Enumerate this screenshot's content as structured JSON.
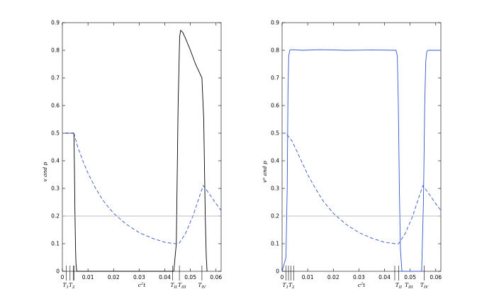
{
  "chart_data": [
    {
      "type": "line",
      "title": "",
      "xlabel": "c²t",
      "ylabel": "v and p",
      "xlim": [
        0,
        0.062
      ],
      "ylim": [
        0,
        0.9
      ],
      "xticks": [
        "0",
        "0.01",
        "0.02",
        "0.03",
        "0.04",
        "0.05",
        "0.06"
      ],
      "yticks": [
        "0",
        "0.1",
        "0.2",
        "0.3",
        "0.4",
        "0.5",
        "0.6",
        "0.7",
        "0.8",
        "0.9"
      ],
      "event_ticks": [
        {
          "label": "T₁T₂",
          "t": 0.0025
        },
        {
          "label": "T_II",
          "t": 0.0435
        },
        {
          "label": "T_III",
          "t": 0.0467
        },
        {
          "label": "T_IV",
          "t": 0.0545
        }
      ],
      "event_tick_values": [
        0.0015,
        0.003,
        0.0043,
        0.0045,
        0.043,
        0.0457,
        0.0545
      ],
      "series": [
        {
          "style": "solid",
          "color": "#000000",
          "x": [
            0,
            0.0045,
            0.0047,
            0.0049,
            0.0051,
            0.0053,
            0.0056,
            0.0435,
            0.0445,
            0.0452,
            0.0458,
            0.0462,
            0.047,
            0.048,
            0.05,
            0.052,
            0.0535,
            0.0545,
            0.0552,
            0.0558,
            0.0562,
            0.0565
          ],
          "y": [
            0.5,
            0.5,
            0.38,
            0.22,
            0.1,
            0.03,
            0,
            0,
            0.1,
            0.6,
            0.85,
            0.872,
            0.865,
            0.845,
            0.8,
            0.75,
            0.72,
            0.7,
            0.55,
            0.2,
            0.05,
            0
          ]
        },
        {
          "style": "dashed",
          "color": "#3355cc",
          "x": [
            0,
            0.0045,
            0.006,
            0.008,
            0.01,
            0.013,
            0.016,
            0.02,
            0.025,
            0.03,
            0.035,
            0.04,
            0.044,
            0.0455,
            0.048,
            0.051,
            0.0535,
            0.055,
            0.057,
            0.06,
            0.062
          ],
          "y": [
            0.5,
            0.5,
            0.45,
            0.4,
            0.355,
            0.3,
            0.255,
            0.21,
            0.17,
            0.14,
            0.12,
            0.105,
            0.1,
            0.1,
            0.135,
            0.2,
            0.27,
            0.31,
            0.285,
            0.245,
            0.22
          ]
        },
        {
          "style": "solid",
          "color": "#aaaaaa",
          "name": "",
          "x": [
            0,
            0.062
          ],
          "y": [
            0.2,
            0.2
          ]
        }
      ]
    },
    {
      "type": "line",
      "title": "",
      "xlabel": "c²t",
      "ylabel": "vᵉ and p",
      "xlim": [
        0,
        0.062
      ],
      "ylim": [
        0,
        0.9
      ],
      "xticks": [
        "0",
        "0.01",
        "0.02",
        "0.03",
        "0.04",
        "0.05",
        "0.06"
      ],
      "yticks": [
        "0",
        "0.1",
        "0.2",
        "0.3",
        "0.4",
        "0.5",
        "0.6",
        "0.7",
        "0.8",
        "0.9"
      ],
      "event_ticks": [
        {
          "label": "T₁T₂",
          "t": 0.0025
        },
        {
          "label": "T_II",
          "t": 0.0455
        },
        {
          "label": "T_III",
          "t": 0.0495
        },
        {
          "label": "T_IV",
          "t": 0.0555
        }
      ],
      "event_tick_values": [
        0.0015,
        0.0025,
        0.0035,
        0.0045,
        0.044,
        0.0455,
        0.0555
      ],
      "series": [
        {
          "style": "solid",
          "color": "#3355cc",
          "x": [
            0,
            0.0015,
            0.002,
            0.0023,
            0.0026,
            0.003,
            0.0035,
            0.008,
            0.015,
            0.025,
            0.035,
            0.0445,
            0.045,
            0.0454,
            0.0458,
            0.0462,
            0.0468,
            0.0545,
            0.0552,
            0.0557,
            0.0561,
            0.0565,
            0.057,
            0.062
          ],
          "y": [
            0,
            0.05,
            0.3,
            0.65,
            0.78,
            0.8,
            0.802,
            0.8,
            0.802,
            0.8,
            0.801,
            0.8,
            0.78,
            0.6,
            0.3,
            0.08,
            0,
            0,
            0.25,
            0.6,
            0.76,
            0.795,
            0.8,
            0.8
          ]
        },
        {
          "style": "dashed",
          "color": "#3355cc",
          "x": [
            0,
            0.0015,
            0.004,
            0.006,
            0.008,
            0.01,
            0.013,
            0.016,
            0.02,
            0.025,
            0.03,
            0.035,
            0.04,
            0.044,
            0.0455,
            0.048,
            0.051,
            0.0535,
            0.055,
            0.057,
            0.06,
            0.062
          ],
          "y": [
            0.5,
            0.5,
            0.47,
            0.43,
            0.39,
            0.35,
            0.3,
            0.255,
            0.21,
            0.17,
            0.14,
            0.12,
            0.105,
            0.1,
            0.1,
            0.135,
            0.2,
            0.27,
            0.31,
            0.285,
            0.245,
            0.22
          ]
        },
        {
          "style": "solid",
          "color": "#aaaaaa",
          "name": "",
          "x": [
            0,
            0.062
          ],
          "y": [
            0.2,
            0.2
          ]
        }
      ]
    }
  ]
}
